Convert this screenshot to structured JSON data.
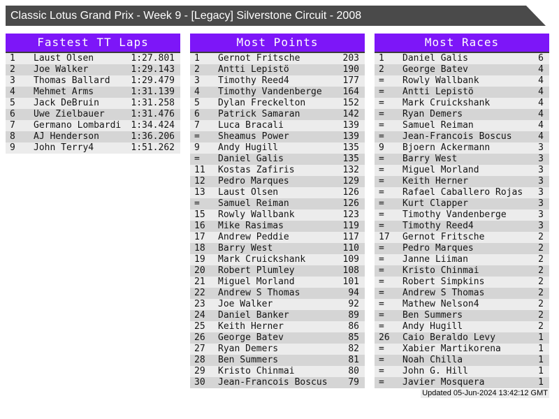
{
  "header": {
    "title": "Classic Lotus Grand Prix - Week 9 - [Legacy] Silverstone Circuit - 2008"
  },
  "colors": {
    "banner_gray": "#4a4a4a",
    "accent_purple": "#7d16f8",
    "row_light": "#ececec",
    "row_dark": "#d5d5d5"
  },
  "tables": [
    {
      "title": "Fastest TT Laps",
      "rows": [
        [
          "1",
          "Laust Olsen",
          "1:27.801"
        ],
        [
          "2",
          "Joe Walker",
          "1:29.143"
        ],
        [
          "3",
          "Thomas Ballard",
          "1:29.479"
        ],
        [
          "4",
          "Mehmet Arms",
          "1:31.139"
        ],
        [
          "5",
          "Jack DeBruin",
          "1:31.258"
        ],
        [
          "6",
          "Uwe Zielbauer",
          "1:31.476"
        ],
        [
          "7",
          "Germano Lombardi",
          "1:34.424"
        ],
        [
          "8",
          "AJ Henderson",
          "1:36.206"
        ],
        [
          "9",
          "John Terry4",
          "1:51.262"
        ]
      ]
    },
    {
      "title": "Most Points",
      "rows": [
        [
          "1",
          "Gernot Fritsche",
          "203"
        ],
        [
          "2",
          "Antti Lepistö",
          "190"
        ],
        [
          "3",
          "Timothy Reed4",
          "177"
        ],
        [
          "4",
          "Timothy Vandenberge",
          "164"
        ],
        [
          "5",
          "Dylan Freckelton",
          "152"
        ],
        [
          "6",
          "Patrick Samaran",
          "142"
        ],
        [
          "7",
          "Luca Bracali",
          "139"
        ],
        [
          "=",
          "Sheamus Power",
          "139"
        ],
        [
          "9",
          "Andy Hugill",
          "135"
        ],
        [
          "=",
          "Daniel Galis",
          "135"
        ],
        [
          "11",
          "Kostas Zafiris",
          "132"
        ],
        [
          "12",
          "Pedro Marques",
          "129"
        ],
        [
          "13",
          "Laust Olsen",
          "126"
        ],
        [
          "=",
          "Samuel Reiman",
          "126"
        ],
        [
          "15",
          "Rowly Wallbank",
          "123"
        ],
        [
          "16",
          "Mike Rasimas",
          "119"
        ],
        [
          "17",
          "Andrew Peddie",
          "117"
        ],
        [
          "18",
          "Barry West",
          "110"
        ],
        [
          "19",
          "Mark Cruickshank",
          "109"
        ],
        [
          "20",
          "Robert Plumley",
          "108"
        ],
        [
          "21",
          "Miguel Morland",
          "101"
        ],
        [
          "22",
          "Andrew S Thomas",
          "94"
        ],
        [
          "23",
          "Joe Walker",
          "92"
        ],
        [
          "24",
          "Daniel Banker",
          "89"
        ],
        [
          "25",
          "Keith Herner",
          "86"
        ],
        [
          "26",
          "George Batev",
          "85"
        ],
        [
          "27",
          "Ryan Demers",
          "82"
        ],
        [
          "28",
          "Ben Summers",
          "81"
        ],
        [
          "29",
          "Kristo Chinmai",
          "80"
        ],
        [
          "30",
          "Jean-Francois Boscus",
          "79"
        ]
      ]
    },
    {
      "title": "Most Races",
      "rows": [
        [
          "1",
          "Daniel Galis",
          "6"
        ],
        [
          "2",
          "George Batev",
          "4"
        ],
        [
          "=",
          "Rowly Wallbank",
          "4"
        ],
        [
          "=",
          "Antti Lepistö",
          "4"
        ],
        [
          "=",
          "Mark Cruickshank",
          "4"
        ],
        [
          "=",
          "Ryan Demers",
          "4"
        ],
        [
          "=",
          "Samuel Reiman",
          "4"
        ],
        [
          "=",
          "Jean-Francois Boscus",
          "4"
        ],
        [
          "9",
          "Bjoern Ackermann",
          "3"
        ],
        [
          "=",
          "Barry West",
          "3"
        ],
        [
          "=",
          "Miguel Morland",
          "3"
        ],
        [
          "=",
          "Keith Herner",
          "3"
        ],
        [
          "=",
          "Rafael Caballero Rojas",
          "3"
        ],
        [
          "=",
          "Kurt Clapper",
          "3"
        ],
        [
          "=",
          "Timothy Vandenberge",
          "3"
        ],
        [
          "=",
          "Timothy Reed4",
          "3"
        ],
        [
          "17",
          "Gernot Fritsche",
          "2"
        ],
        [
          "=",
          "Pedro Marques",
          "2"
        ],
        [
          "=",
          "Janne Liiman",
          "2"
        ],
        [
          "=",
          "Kristo Chinmai",
          "2"
        ],
        [
          "=",
          "Robert Simpkins",
          "2"
        ],
        [
          "=",
          "Andrew S Thomas",
          "2"
        ],
        [
          "=",
          "Mathew Nelson4",
          "2"
        ],
        [
          "=",
          "Ben Summers",
          "2"
        ],
        [
          "=",
          "Andy Hugill",
          "2"
        ],
        [
          "26",
          "Caio Beraldo Levy",
          "1"
        ],
        [
          "=",
          "Xabier Martikorena",
          "1"
        ],
        [
          "=",
          "Noah Chilla",
          "1"
        ],
        [
          "=",
          "John G. Hill",
          "1"
        ],
        [
          "=",
          "Javier Mosquera",
          "1"
        ]
      ]
    }
  ],
  "footer": {
    "updated": "Updated 05-Jun-2024 13:42:12 GMT"
  }
}
